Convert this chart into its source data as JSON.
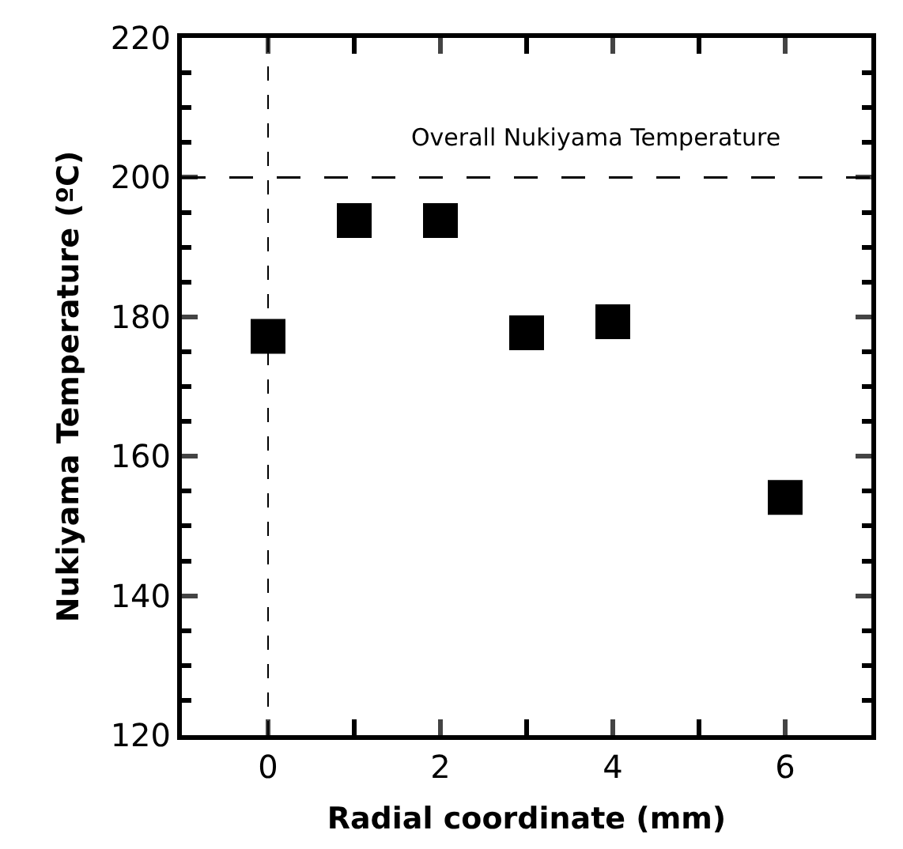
{
  "chart_data": {
    "type": "scatter",
    "xlabel": "Radial coordinate (mm)",
    "ylabel": "Nukiyama Temperature (ºC)",
    "x": [
      0,
      1,
      2,
      3,
      4,
      6
    ],
    "series": [
      {
        "color": "#000000",
        "values": [
          177.2,
          193.8,
          193.8,
          177.7,
          179.3,
          154.1
        ]
      }
    ],
    "marker": "square",
    "xlim": [
      -1,
      7
    ],
    "xticks": [
      0,
      2,
      4,
      6
    ],
    "ylim": [
      120,
      220
    ],
    "yticks": [
      120,
      140,
      160,
      180,
      200,
      220
    ],
    "ref_lines": [
      {
        "axis": "y",
        "value": 200,
        "label": "Overall Nukiyama Temperature",
        "line_style": "dashed"
      },
      {
        "axis": "x",
        "value": 0,
        "label": null,
        "line_style": "dotted"
      }
    ]
  }
}
